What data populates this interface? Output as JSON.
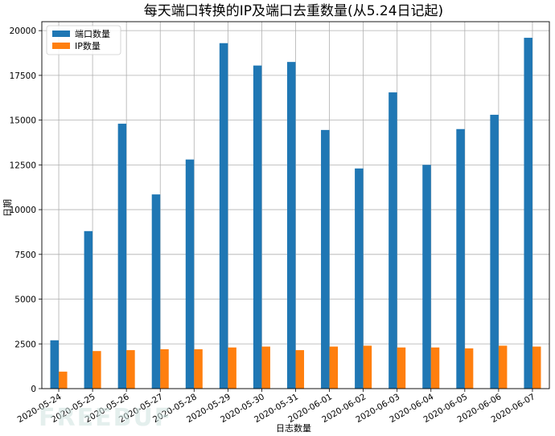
{
  "chart_data": {
    "type": "bar",
    "title": "每天端口转换的IP及端口去重数量(从5.24日记起)",
    "xlabel": "日志数量",
    "ylabel": "日期",
    "categories": [
      "2020-05-24",
      "2020-05-25",
      "2020-05-26",
      "2020-05-27",
      "2020-05-28",
      "2020-05-29",
      "2020-05-30",
      "2020-05-31",
      "2020-06-01",
      "2020-06-02",
      "2020-06-03",
      "2020-06-04",
      "2020-06-05",
      "2020-06-06",
      "2020-06-07"
    ],
    "series": [
      {
        "name": "端口数量",
        "color": "#1f77b4",
        "values": [
          2700,
          8800,
          14800,
          10850,
          12800,
          19300,
          18050,
          18250,
          14450,
          12300,
          16550,
          12500,
          14500,
          15300,
          19600
        ]
      },
      {
        "name": "IP数量",
        "color": "#ff7f0e",
        "values": [
          950,
          2100,
          2150,
          2200,
          2200,
          2300,
          2350,
          2150,
          2350,
          2400,
          2300,
          2300,
          2250,
          2400,
          2350
        ]
      }
    ],
    "ylim": [
      0,
      20500
    ],
    "yticks": [
      0,
      2500,
      5000,
      7500,
      10000,
      12500,
      15000,
      17500,
      20000
    ],
    "grid": true,
    "legend_position": "top-left"
  },
  "watermark": "FREEBUF"
}
